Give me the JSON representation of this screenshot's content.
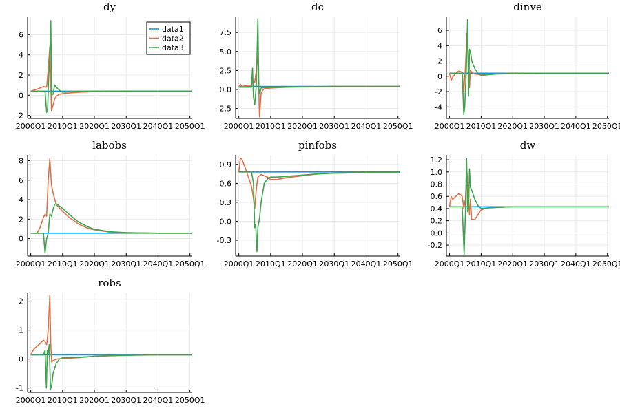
{
  "colors": {
    "data1": "#009AFA",
    "data2": "#E36F47",
    "data3": "#3EA44E"
  },
  "legend_panel": "dy",
  "legend_position": "top-right",
  "chart_data": [
    {
      "type": "line",
      "title": "dy",
      "x_ticks": [
        "2000Q1",
        "2010Q1",
        "2020Q1",
        "2030Q1",
        "2040Q1",
        "2050Q1"
      ],
      "xlim": [
        1999,
        2050.5
      ],
      "y_ticks": [
        -2,
        0,
        2,
        4,
        6
      ],
      "ylim": [
        -2.3,
        7.8
      ],
      "series": [
        {
          "name": "data1",
          "x": [
            2000,
            2005.5,
            2007,
            2050.5
          ],
          "y": [
            0.4,
            0.4,
            0.4,
            0.4
          ]
        },
        {
          "name": "data2",
          "x": [
            2000,
            2002,
            2004,
            2005,
            2005.5,
            2006,
            2006.5,
            2007,
            2007.5,
            2008,
            2009,
            2011,
            2015,
            2020,
            2025,
            2030,
            2050.5
          ],
          "y": [
            0.4,
            0.6,
            0.85,
            0.8,
            2.5,
            4.8,
            -1.5,
            -1.0,
            -0.4,
            -0.1,
            0.1,
            0.2,
            0.3,
            0.35,
            0.38,
            0.4,
            0.4
          ]
        },
        {
          "name": "data3",
          "x": [
            2000,
            2003,
            2004.5,
            2005,
            2005.3,
            2005.6,
            2006,
            2006.3,
            2006.6,
            2007,
            2007.5,
            2008,
            2009,
            2010,
            2012,
            2015,
            2020,
            2050.5
          ],
          "y": [
            0.4,
            0.4,
            0.4,
            -1.7,
            -1.5,
            1.5,
            4.0,
            7.4,
            0.0,
            0.1,
            1.0,
            0.8,
            0.5,
            0.3,
            0.35,
            0.38,
            0.4,
            0.4
          ]
        }
      ]
    },
    {
      "type": "line",
      "title": "dc",
      "x_ticks": [
        "2000Q1",
        "2010Q1",
        "2020Q1",
        "2030Q1",
        "2040Q1",
        "2050Q1"
      ],
      "xlim": [
        1999,
        2050.5
      ],
      "y_ticks": [
        -2.5,
        0.0,
        2.5,
        5.0,
        7.5
      ],
      "y_tick_labels": [
        "-2.5",
        "0.0",
        "2.5",
        "5.0",
        "7.5"
      ],
      "ylim": [
        -3.8,
        9.6
      ],
      "series": [
        {
          "name": "data1",
          "x": [
            2000,
            2005.5,
            2006.5,
            2050.5
          ],
          "y": [
            0.4,
            0.4,
            0.4,
            0.4
          ]
        },
        {
          "name": "data2",
          "x": [
            2000,
            2000.5,
            2001,
            2002,
            2004,
            2004.5,
            2005,
            2005.5,
            2006,
            2006.5,
            2007,
            2007.5,
            2008,
            2010,
            2015,
            2020,
            2030,
            2050.5
          ],
          "y": [
            0.3,
            0.7,
            0.4,
            0.5,
            0.6,
            1.2,
            0.9,
            2.5,
            4.5,
            -3.6,
            -0.5,
            -0.1,
            0.1,
            0.2,
            0.3,
            0.35,
            0.4,
            0.4
          ]
        },
        {
          "name": "data3",
          "x": [
            2000,
            2003,
            2004,
            2004.3,
            2004.6,
            2005,
            2005.5,
            2006,
            2006.3,
            2006.6,
            2007,
            2008,
            2010,
            2015,
            2020,
            2030,
            2050.5
          ],
          "y": [
            0.3,
            0.3,
            0.3,
            2.8,
            -1.0,
            -2.0,
            0.5,
            9.3,
            0.1,
            -0.5,
            0.2,
            0.25,
            0.3,
            0.32,
            0.35,
            0.4,
            0.4
          ]
        }
      ]
    },
    {
      "type": "line",
      "title": "dinve",
      "x_ticks": [
        "2000Q1",
        "2010Q1",
        "2020Q1",
        "2030Q1",
        "2040Q1",
        "2050Q1"
      ],
      "xlim": [
        1999,
        2050.5
      ],
      "y_ticks": [
        -4,
        -2,
        0,
        2,
        4,
        6
      ],
      "ylim": [
        -5.5,
        7.8
      ],
      "series": [
        {
          "name": "data1",
          "x": [
            2000,
            2006.5,
            2050.5
          ],
          "y": [
            0.4,
            0.4,
            0.4
          ]
        },
        {
          "name": "data2",
          "x": [
            2000,
            2000.5,
            2001,
            2002,
            2003,
            2004,
            2004.5,
            2005,
            2005.5,
            2006,
            2006.3,
            2006.6,
            2007,
            2008,
            2010,
            2015,
            2020,
            2030,
            2050.5
          ],
          "y": [
            0.4,
            -0.5,
            -0.1,
            0.4,
            0.7,
            0.5,
            -2.0,
            1.0,
            5.6,
            2.0,
            -1.5,
            0.8,
            0.5,
            0.3,
            0.2,
            0.3,
            0.35,
            0.4,
            0.4
          ]
        },
        {
          "name": "data3",
          "x": [
            2000,
            2003,
            2004,
            2004.5,
            2004.8,
            2005.3,
            2005.7,
            2006,
            2006.3,
            2006.6,
            2007,
            2008,
            2009,
            2010,
            2012,
            2015,
            2020,
            2030,
            2050.5
          ],
          "y": [
            0.4,
            0.4,
            0.4,
            -5.0,
            -4.0,
            1.0,
            7.4,
            -2.6,
            3.5,
            3.3,
            2.0,
            1.0,
            0.4,
            0.1,
            0.2,
            0.3,
            0.35,
            0.4,
            0.4
          ]
        }
      ]
    },
    {
      "type": "line",
      "title": "labobs",
      "x_ticks": [
        "2000Q1",
        "2010Q1",
        "2020Q1",
        "2030Q1",
        "2040Q1",
        "2050Q1"
      ],
      "xlim": [
        1999,
        2050.5
      ],
      "y_ticks": [
        0,
        2,
        4,
        6,
        8
      ],
      "ylim": [
        -1.8,
        8.6
      ],
      "series": [
        {
          "name": "data1",
          "x": [
            2000,
            2050.5
          ],
          "y": [
            0.55,
            0.55
          ]
        },
        {
          "name": "data2",
          "x": [
            2000,
            2002,
            2003,
            2004,
            2004.5,
            2005,
            2005.5,
            2006,
            2006.5,
            2007,
            2008,
            2010,
            2012,
            2015,
            2018,
            2020,
            2025,
            2030,
            2040,
            2050.5
          ],
          "y": [
            0.55,
            0.55,
            1.2,
            2.2,
            2.5,
            2.3,
            6.0,
            8.2,
            5.5,
            4.7,
            3.5,
            2.8,
            2.2,
            1.5,
            1.05,
            0.9,
            0.65,
            0.6,
            0.55,
            0.55
          ]
        },
        {
          "name": "data3",
          "x": [
            2000,
            2003,
            2004,
            2004.5,
            2005,
            2005.5,
            2006,
            2006.5,
            2007,
            2007.5,
            2008,
            2010,
            2012,
            2015,
            2018,
            2020,
            2025,
            2030,
            2040,
            2050.5
          ],
          "y": [
            0.55,
            0.55,
            0.55,
            -1.5,
            0.0,
            0.55,
            2.5,
            2.3,
            3.0,
            3.5,
            3.6,
            3.1,
            2.5,
            1.7,
            1.2,
            0.95,
            0.7,
            0.6,
            0.55,
            0.55
          ]
        }
      ]
    },
    {
      "type": "line",
      "title": "pinfobs",
      "x_ticks": [
        "2000Q1",
        "2010Q1",
        "2020Q1",
        "2030Q1",
        "2040Q1",
        "2050Q1"
      ],
      "xlim": [
        1999,
        2050.5
      ],
      "y_ticks": [
        -0.3,
        0.0,
        0.3,
        0.6,
        0.9
      ],
      "y_tick_labels": [
        "-0.3",
        "0.0",
        "0.3",
        "0.6",
        "0.9"
      ],
      "ylim": [
        -0.55,
        1.05
      ],
      "series": [
        {
          "name": "data1",
          "x": [
            2000,
            2050.5
          ],
          "y": [
            0.78,
            0.78
          ]
        },
        {
          "name": "data2",
          "x": [
            2000,
            2000.5,
            2001,
            2002,
            2003,
            2004,
            2004.5,
            2005,
            2005.5,
            2006,
            2007,
            2009,
            2010,
            2012,
            2015,
            2020,
            2025,
            2030,
            2040,
            2050.5
          ],
          "y": [
            0.78,
            1.0,
            0.98,
            0.85,
            0.7,
            0.55,
            0.4,
            0.2,
            0.5,
            0.7,
            0.74,
            0.7,
            0.66,
            0.66,
            0.69,
            0.72,
            0.75,
            0.76,
            0.77,
            0.77
          ]
        },
        {
          "name": "data3",
          "x": [
            2000,
            2003,
            2004,
            2004.6,
            2005,
            2005.3,
            2005.7,
            2006,
            2006.5,
            2007,
            2007.5,
            2008,
            2009,
            2010,
            2012,
            2015,
            2020,
            2025,
            2030,
            2040,
            2050.5
          ],
          "y": [
            0.78,
            0.78,
            0.78,
            0.6,
            -0.1,
            -0.05,
            -0.48,
            -0.1,
            0.05,
            0.3,
            0.45,
            0.6,
            0.67,
            0.7,
            0.7,
            0.71,
            0.73,
            0.75,
            0.76,
            0.77,
            0.77
          ]
        }
      ]
    },
    {
      "type": "line",
      "title": "dw",
      "x_ticks": [
        "2000Q1",
        "2010Q1",
        "2020Q1",
        "2030Q1",
        "2040Q1",
        "2050Q1"
      ],
      "xlim": [
        1999,
        2050.5
      ],
      "y_ticks": [
        -0.2,
        0.0,
        0.2,
        0.4,
        0.6,
        0.8,
        1.0,
        1.2
      ],
      "y_tick_labels": [
        "-0.2",
        "0.0",
        "0.2",
        "0.4",
        "0.6",
        "0.8",
        "1.0",
        "1.2"
      ],
      "ylim": [
        -0.38,
        1.28
      ],
      "series": [
        {
          "name": "data1",
          "x": [
            2000,
            2006.5,
            2007,
            2050.5
          ],
          "y": [
            0.43,
            0.43,
            0.43,
            0.43
          ]
        },
        {
          "name": "data2",
          "x": [
            2000,
            2000.5,
            2001,
            2002,
            2003,
            2004,
            2004.5,
            2005,
            2005.5,
            2006,
            2006.3,
            2006.6,
            2007,
            2008,
            2009,
            2010,
            2012,
            2015,
            2020,
            2030,
            2050.5
          ],
          "y": [
            0.43,
            0.6,
            0.55,
            0.6,
            0.65,
            0.6,
            0.4,
            0.55,
            1.0,
            0.5,
            0.3,
            0.55,
            0.22,
            0.22,
            0.3,
            0.38,
            0.41,
            0.42,
            0.43,
            0.43,
            0.43
          ]
        },
        {
          "name": "data3",
          "x": [
            2000,
            2003,
            2004,
            2004.6,
            2005,
            2005.4,
            2005.7,
            2006,
            2006.3,
            2006.6,
            2007,
            2008,
            2009,
            2010,
            2012,
            2015,
            2020,
            2030,
            2050.5
          ],
          "y": [
            0.43,
            0.43,
            0.43,
            -0.35,
            0.3,
            1.22,
            0.35,
            0.4,
            1.05,
            0.75,
            0.7,
            0.55,
            0.45,
            0.4,
            0.41,
            0.42,
            0.43,
            0.43,
            0.43
          ]
        }
      ]
    },
    {
      "type": "line",
      "title": "robs",
      "x_ticks": [
        "2000Q1",
        "2010Q1",
        "2020Q1",
        "2030Q1",
        "2040Q1",
        "2050Q1"
      ],
      "xlim": [
        1999,
        2050.5
      ],
      "y_ticks": [
        -1,
        0,
        1,
        2
      ],
      "ylim": [
        -1.15,
        2.3
      ],
      "series": [
        {
          "name": "data1",
          "x": [
            2000,
            2050.5
          ],
          "y": [
            0.15,
            0.15
          ]
        },
        {
          "name": "data2",
          "x": [
            2000,
            2001,
            2002,
            2003,
            2004,
            2004.5,
            2005,
            2005.5,
            2006,
            2006.3,
            2006.6,
            2007,
            2008,
            2010,
            2015,
            2020,
            2025,
            2030,
            2040,
            2050.5
          ],
          "y": [
            0.15,
            0.35,
            0.45,
            0.55,
            0.65,
            0.6,
            0.5,
            1.0,
            2.2,
            0.5,
            -0.1,
            -0.05,
            0.0,
            0.02,
            0.05,
            0.1,
            0.12,
            0.14,
            0.15,
            0.15
          ]
        },
        {
          "name": "data3",
          "x": [
            2000,
            2003,
            2004,
            2004.5,
            2004.9,
            2005.2,
            2005.5,
            2005.8,
            2006.2,
            2006.6,
            2007,
            2008,
            2009,
            2010,
            2012,
            2015,
            2020,
            2030,
            2040,
            2050.5
          ],
          "y": [
            0.15,
            0.15,
            0.15,
            0.3,
            -1.0,
            0.3,
            0.2,
            0.5,
            -1.05,
            -0.9,
            -0.5,
            -0.15,
            0.0,
            0.05,
            0.05,
            0.06,
            0.1,
            0.13,
            0.15,
            0.15
          ]
        }
      ]
    }
  ]
}
